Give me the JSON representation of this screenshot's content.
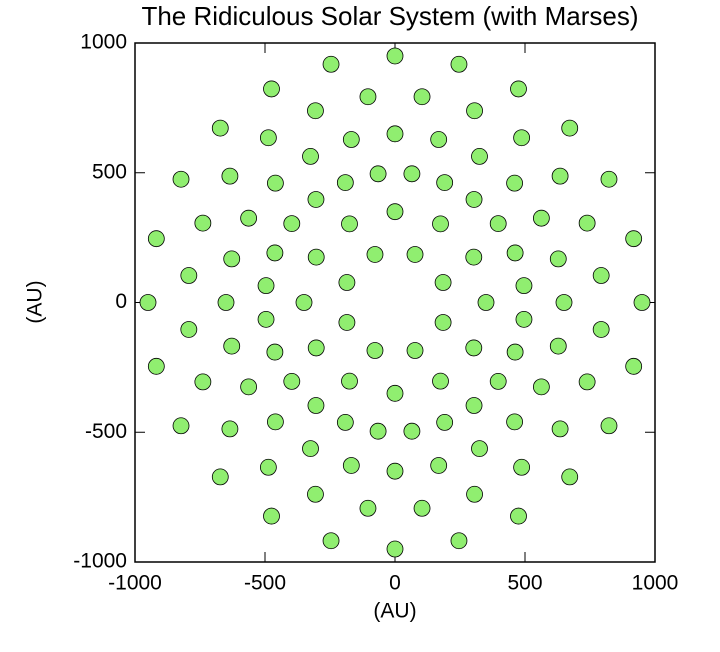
{
  "chart_data": {
    "type": "scatter",
    "title": "The Ridiculous Solar System (with Marses)",
    "x_label": "(AU)",
    "y_label": "(AU)",
    "color": "#90ee70",
    "edge_color": "#000000",
    "xlim": [
      -1000,
      1000
    ],
    "ylim": [
      -1000,
      1000
    ],
    "xticks": [
      -1000,
      -500,
      0,
      500,
      1000
    ],
    "yticks": [
      -1000,
      -500,
      0,
      500,
      1000
    ],
    "x": [
      950,
      918,
      823,
      672,
      475,
      246,
      0,
      -246,
      -475,
      -672,
      -823,
      -918,
      -950,
      -918,
      -823,
      -672,
      -475,
      -246,
      0,
      246,
      475,
      672,
      823,
      918,
      793,
      739,
      635,
      487,
      306,
      104,
      -104,
      -306,
      -487,
      -635,
      -739,
      -793,
      -793,
      -739,
      -635,
      -487,
      -306,
      -104,
      104,
      306,
      487,
      635,
      739,
      793,
      650,
      628,
      563,
      460,
      325,
      168,
      0,
      -168,
      -325,
      -460,
      -563,
      -628,
      -650,
      -628,
      -563,
      -460,
      -325,
      -168,
      0,
      168,
      325,
      460,
      563,
      628,
      496,
      462,
      397,
      304,
      191,
      65,
      -65,
      -191,
      -304,
      -397,
      -462,
      -496,
      -496,
      -462,
      -397,
      -304,
      -191,
      -65,
      65,
      191,
      304,
      397,
      462,
      496,
      350,
      303,
      175,
      0,
      -175,
      -303,
      -350,
      -303,
      -175,
      0,
      175,
      303,
      185,
      77,
      -77,
      -185,
      -185,
      -77,
      77,
      185
    ],
    "values": [
      0,
      246,
      475,
      672,
      823,
      918,
      950,
      918,
      823,
      672,
      475,
      246,
      0,
      -246,
      -475,
      -672,
      -823,
      -918,
      -950,
      -918,
      -823,
      -672,
      -475,
      -246,
      104,
      306,
      487,
      635,
      739,
      793,
      793,
      739,
      635,
      487,
      306,
      104,
      -104,
      -306,
      -487,
      -635,
      -739,
      -793,
      -793,
      -739,
      -635,
      -487,
      -306,
      -104,
      0,
      168,
      325,
      460,
      563,
      628,
      650,
      628,
      563,
      460,
      325,
      168,
      0,
      -168,
      -325,
      -460,
      -563,
      -628,
      -650,
      -628,
      -563,
      -460,
      -325,
      -168,
      65,
      191,
      304,
      397,
      462,
      496,
      496,
      462,
      397,
      304,
      191,
      65,
      -65,
      -191,
      -304,
      -397,
      -462,
      -496,
      -496,
      -462,
      -397,
      -304,
      -191,
      -65,
      0,
      175,
      303,
      350,
      303,
      175,
      0,
      -175,
      -303,
      -350,
      -303,
      -175,
      77,
      185,
      185,
      77,
      -77,
      -185,
      -185,
      -77
    ]
  }
}
